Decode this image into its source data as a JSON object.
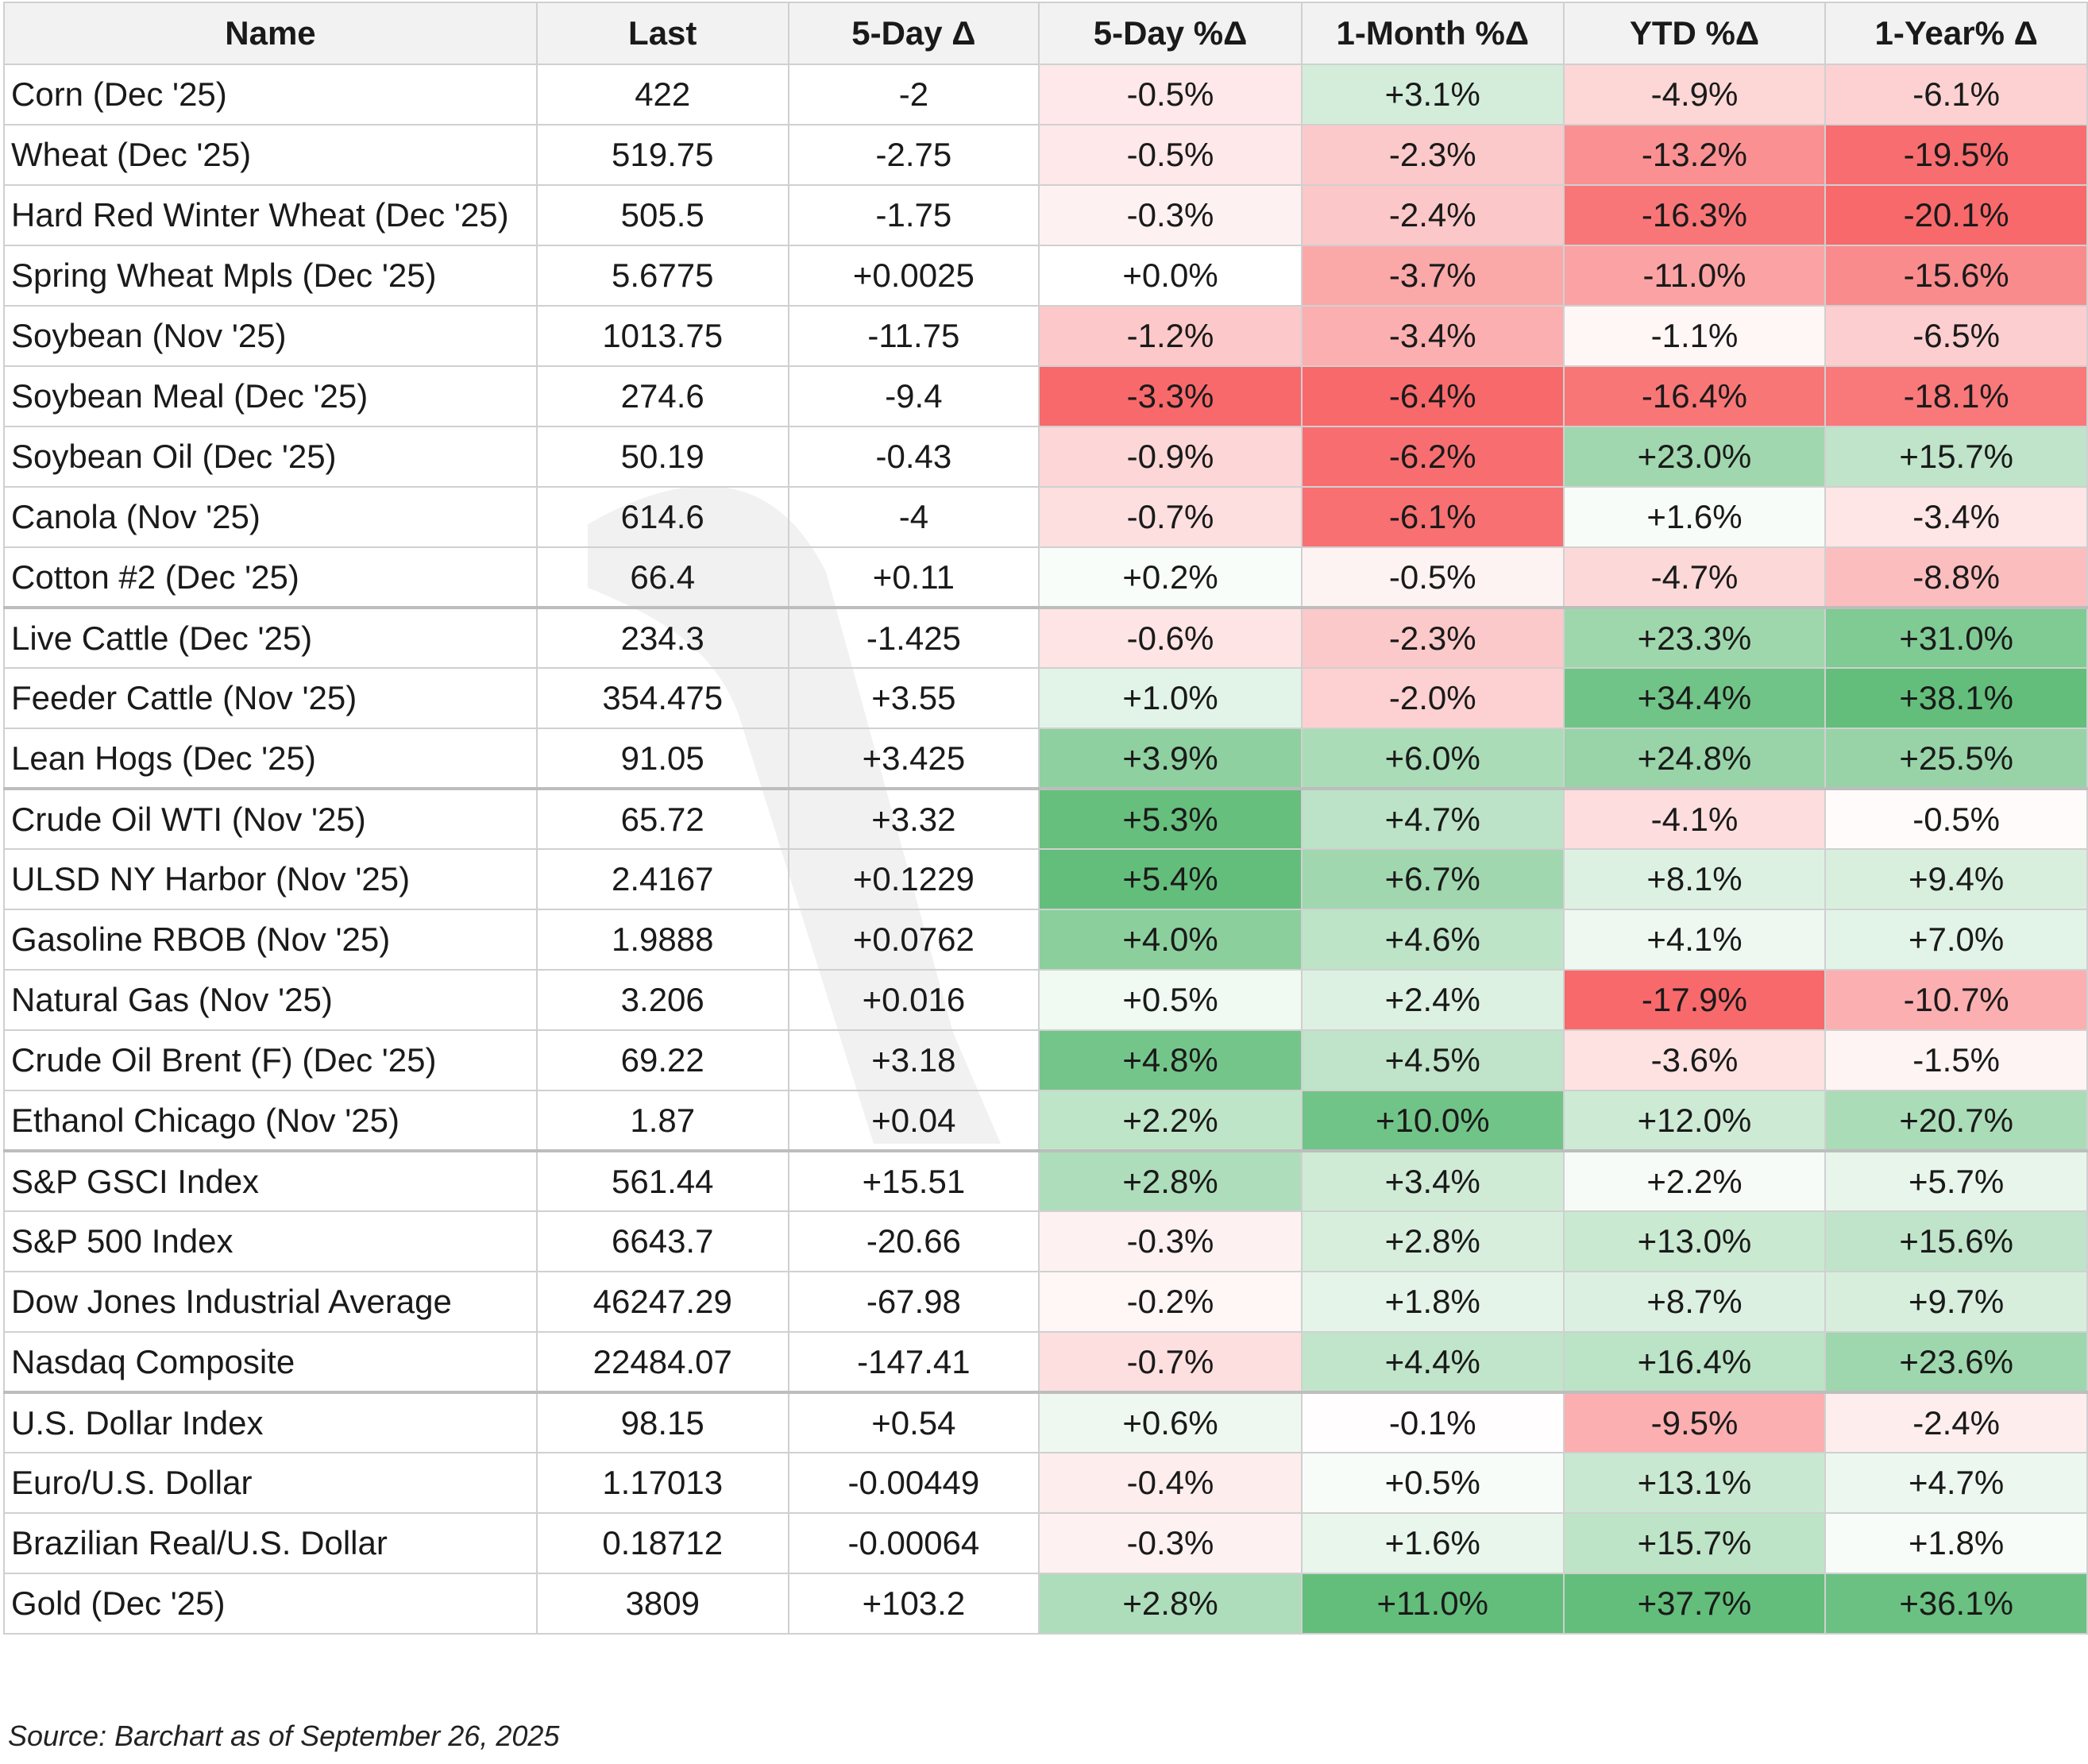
{
  "table": {
    "headers": [
      "Name",
      "Last",
      "5-Day Δ",
      "5-Day %Δ",
      "1-Month %Δ",
      "YTD %Δ",
      "1-Year% Δ"
    ],
    "rows": [
      {
        "name": "Corn (Dec '25)",
        "last": "422",
        "d5": "-2",
        "p5": "-0.5%",
        "m1": "+3.1%",
        "ytd": "-4.9%",
        "y1": "-6.1%"
      },
      {
        "name": "Wheat (Dec '25)",
        "last": "519.75",
        "d5": "-2.75",
        "p5": "-0.5%",
        "m1": "-2.3%",
        "ytd": "-13.2%",
        "y1": "-19.5%"
      },
      {
        "name": "Hard Red Winter Wheat (Dec '25)",
        "last": "505.5",
        "d5": "-1.75",
        "p5": "-0.3%",
        "m1": "-2.4%",
        "ytd": "-16.3%",
        "y1": "-20.1%"
      },
      {
        "name": "Spring Wheat Mpls (Dec '25)",
        "last": "5.6775",
        "d5": "+0.0025",
        "p5": "+0.0%",
        "m1": "-3.7%",
        "ytd": "-11.0%",
        "y1": "-15.6%"
      },
      {
        "name": "Soybean (Nov '25)",
        "last": "1013.75",
        "d5": "-11.75",
        "p5": "-1.2%",
        "m1": "-3.4%",
        "ytd": "-1.1%",
        "y1": "-6.5%"
      },
      {
        "name": "Soybean Meal (Dec '25)",
        "last": "274.6",
        "d5": "-9.4",
        "p5": "-3.3%",
        "m1": "-6.4%",
        "ytd": "-16.4%",
        "y1": "-18.1%"
      },
      {
        "name": "Soybean Oil (Dec '25)",
        "last": "50.19",
        "d5": "-0.43",
        "p5": "-0.9%",
        "m1": "-6.2%",
        "ytd": "+23.0%",
        "y1": "+15.7%"
      },
      {
        "name": "Canola (Nov '25)",
        "last": "614.6",
        "d5": "-4",
        "p5": "-0.7%",
        "m1": "-6.1%",
        "ytd": "+1.6%",
        "y1": "-3.4%"
      },
      {
        "name": "Cotton #2 (Dec '25)",
        "last": "66.4",
        "d5": "+0.11",
        "p5": "+0.2%",
        "m1": "-0.5%",
        "ytd": "-4.7%",
        "y1": "-8.8%"
      },
      {
        "name": "Live Cattle (Dec '25)",
        "last": "234.3",
        "d5": "-1.425",
        "p5": "-0.6%",
        "m1": "-2.3%",
        "ytd": "+23.3%",
        "y1": "+31.0%"
      },
      {
        "name": "Feeder Cattle (Nov '25)",
        "last": "354.475",
        "d5": "+3.55",
        "p5": "+1.0%",
        "m1": "-2.0%",
        "ytd": "+34.4%",
        "y1": "+38.1%"
      },
      {
        "name": "Lean Hogs (Dec '25)",
        "last": "91.05",
        "d5": "+3.425",
        "p5": "+3.9%",
        "m1": "+6.0%",
        "ytd": "+24.8%",
        "y1": "+25.5%"
      },
      {
        "name": "Crude Oil WTI (Nov '25)",
        "last": "65.72",
        "d5": "+3.32",
        "p5": "+5.3%",
        "m1": "+4.7%",
        "ytd": "-4.1%",
        "y1": "-0.5%"
      },
      {
        "name": "ULSD NY Harbor (Nov '25)",
        "last": "2.4167",
        "d5": "+0.1229",
        "p5": "+5.4%",
        "m1": "+6.7%",
        "ytd": "+8.1%",
        "y1": "+9.4%"
      },
      {
        "name": "Gasoline RBOB (Nov '25)",
        "last": "1.9888",
        "d5": "+0.0762",
        "p5": "+4.0%",
        "m1": "+4.6%",
        "ytd": "+4.1%",
        "y1": "+7.0%"
      },
      {
        "name": "Natural Gas (Nov '25)",
        "last": "3.206",
        "d5": "+0.016",
        "p5": "+0.5%",
        "m1": "+2.4%",
        "ytd": "-17.9%",
        "y1": "-10.7%"
      },
      {
        "name": "Crude Oil Brent (F) (Dec '25)",
        "last": "69.22",
        "d5": "+3.18",
        "p5": "+4.8%",
        "m1": "+4.5%",
        "ytd": "-3.6%",
        "y1": "-1.5%"
      },
      {
        "name": "Ethanol Chicago (Nov '25)",
        "last": "1.87",
        "d5": "+0.04",
        "p5": "+2.2%",
        "m1": "+10.0%",
        "ytd": "+12.0%",
        "y1": "+20.7%"
      },
      {
        "name": "S&P GSCI Index",
        "last": "561.44",
        "d5": "+15.51",
        "p5": "+2.8%",
        "m1": "+3.4%",
        "ytd": "+2.2%",
        "y1": "+5.7%"
      },
      {
        "name": "S&P 500 Index",
        "last": "6643.7",
        "d5": "-20.66",
        "p5": "-0.3%",
        "m1": "+2.8%",
        "ytd": "+13.0%",
        "y1": "+15.6%"
      },
      {
        "name": "Dow Jones Industrial Average",
        "last": "46247.29",
        "d5": "-67.98",
        "p5": "-0.2%",
        "m1": "+1.8%",
        "ytd": "+8.7%",
        "y1": "+9.7%"
      },
      {
        "name": "Nasdaq Composite",
        "last": "22484.07",
        "d5": "-147.41",
        "p5": "-0.7%",
        "m1": "+4.4%",
        "ytd": "+16.4%",
        "y1": "+23.6%"
      },
      {
        "name": "U.S. Dollar Index",
        "last": "98.15",
        "d5": "+0.54",
        "p5": "+0.6%",
        "m1": "-0.1%",
        "ytd": "-9.5%",
        "y1": "-2.4%"
      },
      {
        "name": "Euro/U.S. Dollar",
        "last": "1.17013",
        "d5": "-0.00449",
        "p5": "-0.4%",
        "m1": "+0.5%",
        "ytd": "+13.1%",
        "y1": "+4.7%"
      },
      {
        "name": "Brazilian Real/U.S. Dollar",
        "last": "0.18712",
        "d5": "-0.00064",
        "p5": "-0.3%",
        "m1": "+1.6%",
        "ytd": "+15.7%",
        "y1": "+1.8%"
      },
      {
        "name": "Gold (Dec '25)",
        "last": "3809",
        "d5": "+103.2",
        "p5": "+2.8%",
        "m1": "+11.0%",
        "ytd": "+37.7%",
        "y1": "+36.1%"
      }
    ],
    "group_start_rows": [
      9,
      12,
      18,
      22
    ]
  },
  "source": "Source: Barchart as of September 26, 2025",
  "colors": {
    "header_bg": "#f2f2f2",
    "grid": "#d0d0d0",
    "neutral": "#ffffff",
    "red_max": "#f8696b",
    "green_max": "#63be7b"
  }
}
